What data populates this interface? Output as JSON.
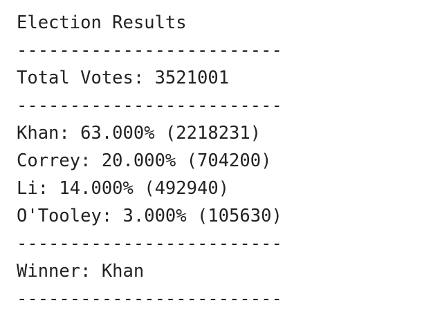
{
  "output": {
    "lines": [
      "Election Results",
      "-------------------------",
      "Total Votes: 3521001",
      "-------------------------",
      "Khan: 63.000% (2218231)",
      "Correy: 20.000% (704200)",
      "Li: 14.000% (492940)",
      "O'Tooley: 3.000% (105630)",
      "-------------------------",
      "Winner: Khan",
      "-------------------------"
    ]
  }
}
